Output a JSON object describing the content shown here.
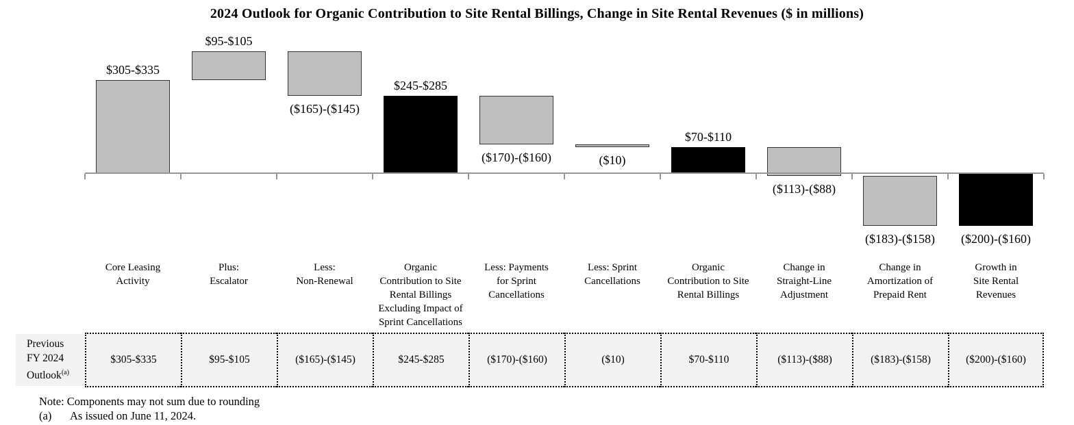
{
  "title": "2024 Outlook for Organic Contribution to Site Rental Billings, Change in Site Rental Revenues ($ in millions)",
  "chart_data": {
    "type": "bar",
    "subtype": "waterfall",
    "units": "$ in millions",
    "grid": false,
    "axis_baseline_value": 0,
    "categories": [
      "Core Leasing\nActivity",
      "Plus:\nEscalator",
      "Less:\nNon-Renewal",
      "Organic\nContribution to Site\nRental Billings\nExcluding Impact of\nSprint Cancellations",
      "Less: Payments\nfor Sprint\nCancellations",
      "Less: Sprint\nCancellations",
      "Organic\nContribution to Site\nRental Billings",
      "Change in\nStraight-Line\nAdjustment",
      "Change in\nAmortization of\nPrepaid Rent",
      "Growth in\nSite Rental\nRevenues"
    ],
    "bars": [
      {
        "value_label": "$305-$335",
        "range_low": 305,
        "range_high": 335,
        "start": 0,
        "end": 320,
        "fill": "gray",
        "value_label_pos": "above"
      },
      {
        "value_label": "$95-$105",
        "range_low": 95,
        "range_high": 105,
        "start": 320,
        "end": 420,
        "fill": "gray",
        "value_label_pos": "above"
      },
      {
        "value_label": "($165)-($145)",
        "range_low": -165,
        "range_high": -145,
        "start": 420,
        "end": 265,
        "fill": "gray",
        "value_label_pos": "below"
      },
      {
        "value_label": "$245-$285",
        "range_low": 245,
        "range_high": 285,
        "start": 0,
        "end": 265,
        "fill": "black",
        "value_label_pos": "above"
      },
      {
        "value_label": "($170)-($160)",
        "range_low": -170,
        "range_high": -160,
        "start": 265,
        "end": 100,
        "fill": "gray",
        "value_label_pos": "below"
      },
      {
        "value_label": "($10)",
        "range_low": -10,
        "range_high": -10,
        "start": 100,
        "end": 90,
        "fill": "gray",
        "value_label_pos": "below"
      },
      {
        "value_label": "$70-$110",
        "range_low": 70,
        "range_high": 110,
        "start": 0,
        "end": 90,
        "fill": "black",
        "value_label_pos": "above"
      },
      {
        "value_label": "($113)-($88)",
        "range_low": -113,
        "range_high": -88,
        "start": 90,
        "end": -10.5,
        "fill": "gray",
        "value_label_pos": "below"
      },
      {
        "value_label": "($183)-($158)",
        "range_low": -183,
        "range_high": -158,
        "start": -10.5,
        "end": -181,
        "fill": "gray",
        "value_label_pos": "below"
      },
      {
        "value_label": "($200)-($160)",
        "range_low": -200,
        "range_high": -160,
        "start": 0,
        "end": -180,
        "fill": "black",
        "value_label_pos": "below"
      }
    ],
    "colors": {
      "bar_gray": "#bfbfbf",
      "bar_black": "#000000",
      "bar_border": "#333333",
      "axis_line": "#969696",
      "table_bg": "#f2f2f2",
      "table_dots": "#000000"
    }
  },
  "table": {
    "row_header_lines": "Previous\nFY 2024\nOutlook",
    "row_header_sup": "(a)",
    "values": [
      "$305-$335",
      "$95-$105",
      "($165)-($145)",
      "$245-$285",
      "($170)-($160)",
      "($10)",
      "$70-$110",
      "($113)-($88)",
      "($183)-($158)",
      "($200)-($160)"
    ]
  },
  "notes": {
    "note": "Note: Components may not sum due to rounding",
    "footnote_marker": "(a)",
    "footnote_text": "As issued on June 11, 2024."
  }
}
